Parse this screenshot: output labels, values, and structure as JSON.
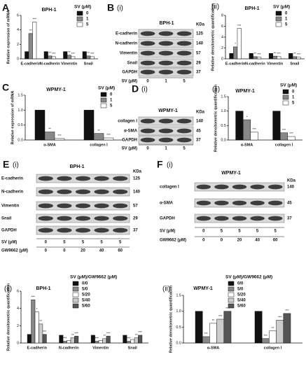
{
  "chart_data": [
    {
      "type": "bar",
      "panel": "A",
      "title": "BPH-1",
      "ylabel": "Relative expression of mRNA",
      "legend_title": "SV (μM)",
      "categories": [
        "E-cadherin",
        "N-cadherin",
        "Vimentin",
        "Snail"
      ],
      "ylim": [
        0,
        6
      ],
      "yticks": [
        0,
        2,
        4,
        6
      ],
      "series": [
        {
          "name": "0",
          "color": "#111111",
          "values": [
            1,
            1,
            1,
            1
          ],
          "marks": [
            null,
            null,
            null,
            null
          ]
        },
        {
          "name": "1",
          "color": "#888888",
          "values": [
            3.5,
            0.4,
            0.5,
            0.4
          ],
          "marks": [
            "**",
            "**",
            "**",
            "**"
          ]
        },
        {
          "name": "5",
          "color": "#ffffff",
          "values": [
            5.1,
            0.3,
            0.3,
            0.3
          ],
          "marks": [
            "***",
            "***",
            "***",
            "***"
          ]
        }
      ]
    },
    {
      "type": "bar",
      "panel": "(ii)",
      "title": "BPH-1",
      "ylabel": "Relative densitometric quantification",
      "legend_title": "SV (μM)",
      "categories": [
        "E-cadherin",
        "N-cadherin",
        "Vimentin",
        "Snail"
      ],
      "ylim": [
        0,
        8
      ],
      "yticks": [
        0,
        2,
        4,
        6,
        8
      ],
      "series": [
        {
          "name": "0",
          "color": "#111111",
          "values": [
            1,
            1,
            1,
            1
          ],
          "marks": [
            null,
            null,
            null,
            null
          ]
        },
        {
          "name": "1",
          "color": "#888888",
          "values": [
            2.2,
            0.4,
            0.5,
            0.4
          ],
          "marks": [
            "*",
            "**",
            "**",
            "**"
          ]
        },
        {
          "name": "5",
          "color": "#ffffff",
          "values": [
            5.6,
            0.3,
            0.4,
            0.3
          ],
          "marks": [
            "***",
            "***",
            "***",
            "***"
          ]
        }
      ]
    },
    {
      "type": "bar",
      "panel": "C",
      "title": "WPMY-1",
      "ylabel": "Relative expression of mRNA",
      "legend_title": "SV (μM)",
      "categories": [
        "α-SMA",
        "collagen Ⅰ"
      ],
      "ylim": [
        0,
        1.5
      ],
      "yticks": [
        {
          "value": 0,
          "label": "0.0"
        },
        0.5,
        {
          "value": 1,
          "label": "1.0"
        },
        1.5
      ],
      "series": [
        {
          "name": "0",
          "color": "#111111",
          "values": [
            1.0,
            1.0
          ],
          "marks": [
            null,
            null
          ]
        },
        {
          "name": "1",
          "color": "#888888",
          "values": [
            0.27,
            0.22
          ],
          "marks": [
            "**",
            "**"
          ]
        },
        {
          "name": "5",
          "color": "#ffffff",
          "values": [
            0.05,
            0.07
          ],
          "marks": [
            "***",
            "***"
          ]
        }
      ]
    },
    {
      "type": "bar",
      "panel": "(ii)",
      "title": "WPMY-1",
      "ylabel": "Relative densitometric quantification",
      "legend_title": "SV (μM)",
      "categories": [
        "α-SMA",
        "collagen Ⅰ"
      ],
      "ylim": [
        0,
        1.5
      ],
      "yticks": [
        {
          "value": 0,
          "label": "0.0"
        },
        0.5,
        {
          "value": 1,
          "label": "1.0"
        },
        1.5
      ],
      "series": [
        {
          "name": "0",
          "color": "#111111",
          "values": [
            1.0,
            1.0
          ],
          "marks": [
            null,
            null
          ]
        },
        {
          "name": "1",
          "color": "#888888",
          "values": [
            0.7,
            0.25
          ],
          "marks": [
            "*",
            "***"
          ]
        },
        {
          "name": "5",
          "color": "#ffffff",
          "values": [
            0.27,
            0.12
          ],
          "marks": [
            "***",
            "***"
          ]
        }
      ]
    },
    {
      "type": "bar",
      "panel": "(ii)",
      "title": "BPH-1",
      "ylabel": "Relative densitometric quantification",
      "legend_title": "SV (μM)/GW9662 (μM)",
      "categories": [
        "E-cadherin",
        "N-cadherin",
        "Vimentin",
        "Snail"
      ],
      "ylim": [
        0,
        6
      ],
      "yticks": [
        0,
        2,
        4,
        6
      ],
      "series": [
        {
          "name": "0/0",
          "color": "#111111",
          "values": [
            1.0,
            0.9,
            0.9,
            0.9
          ],
          "marks": [
            null,
            null,
            null,
            null
          ]
        },
        {
          "name": "5/0",
          "color": "#888888",
          "values": [
            5.0,
            0.2,
            0.2,
            0.2
          ],
          "marks": [
            "***",
            "***",
            "***",
            "***"
          ]
        },
        {
          "name": "5/20",
          "color": "#ffffff",
          "values": [
            3.6,
            0.3,
            0.3,
            0.4
          ],
          "marks": [
            "*",
            null,
            null,
            null
          ]
        },
        {
          "name": "5/40",
          "color": "#cccccc",
          "values": [
            2.2,
            0.6,
            0.5,
            0.6
          ],
          "marks": [
            "**",
            "**",
            "**",
            "**"
          ]
        },
        {
          "name": "5/60",
          "color": "#555555",
          "values": [
            1.0,
            0.8,
            0.8,
            0.9
          ],
          "marks": [
            "***",
            "***",
            "***",
            "***"
          ]
        }
      ]
    },
    {
      "type": "bar",
      "panel": "(ii)",
      "title": "WPMY-1",
      "ylabel": "Relative densitometric quantification",
      "legend_title": "SV (μM)/GW9662 (μM)",
      "categories": [
        "α-SMA",
        "collagen Ⅰ"
      ],
      "ylim": [
        0,
        1.5
      ],
      "yticks": [
        {
          "value": 0,
          "label": "0.0"
        },
        0.5,
        {
          "value": 1,
          "label": "1.0"
        },
        1.5
      ],
      "series": [
        {
          "name": "0/0",
          "color": "#111111",
          "values": [
            1.0,
            1.0
          ],
          "marks": [
            null,
            null
          ]
        },
        {
          "name": "5/0",
          "color": "#888888",
          "values": [
            0.2,
            0.14
          ],
          "marks": [
            "***",
            "***"
          ]
        },
        {
          "name": "5/20",
          "color": "#ffffff",
          "values": [
            0.62,
            0.38
          ],
          "marks": [
            "**",
            "**"
          ]
        },
        {
          "name": "5/40",
          "color": "#cccccc",
          "values": [
            0.75,
            0.72
          ],
          "marks": [
            "***",
            "***"
          ]
        },
        {
          "name": "5/60",
          "color": "#555555",
          "values": [
            1.0,
            0.93
          ],
          "marks": [
            "***",
            "***"
          ]
        }
      ]
    }
  ],
  "blots": [
    {
      "panel": "B",
      "subpanel": "(i)",
      "title": "BPH-1",
      "unit": "KDa",
      "rows": [
        {
          "label": "E-cadherin",
          "kda": 125
        },
        {
          "label": "N-cadherin",
          "kda": 140
        },
        {
          "label": "Vimentin",
          "kda": 57
        },
        {
          "label": "Snail",
          "kda": 29
        },
        {
          "label": "GAPDH",
          "kda": 37
        }
      ],
      "conditions": [
        {
          "label": "SV (μM)",
          "values": [
            0,
            1,
            5
          ]
        }
      ]
    },
    {
      "panel": "D",
      "subpanel": "(i)",
      "title": "WPMY-1",
      "unit": "KDa",
      "rows": [
        {
          "label": "collagen Ⅰ",
          "kda": 140
        },
        {
          "label": "α-SMA",
          "kda": 45
        },
        {
          "label": "GAPDH",
          "kda": 37
        }
      ],
      "conditions": [
        {
          "label": "SV (μM)",
          "values": [
            0,
            1,
            5
          ]
        }
      ]
    },
    {
      "panel": "E",
      "subpanel": "(i)",
      "title": "BPH-1",
      "unit": "KDa",
      "rows": [
        {
          "label": "E-cadherin",
          "kda": 125
        },
        {
          "label": "N-cadherin",
          "kda": 140
        },
        {
          "label": "Vimentin",
          "kda": 57
        },
        {
          "label": "Snail",
          "kda": 29
        },
        {
          "label": "GAPDH",
          "kda": 37
        }
      ],
      "conditions": [
        {
          "label": "SV (μM)",
          "values": [
            0,
            5,
            5,
            5,
            5
          ]
        },
        {
          "label": "GW9662 (μM)",
          "values": [
            0,
            0,
            20,
            40,
            60
          ]
        }
      ]
    },
    {
      "panel": "F",
      "subpanel": "(i)",
      "title": "WPMY-1",
      "unit": "KDa",
      "rows": [
        {
          "label": "collagen Ⅰ",
          "kda": 140
        },
        {
          "label": "α-SMA",
          "kda": 45
        },
        {
          "label": "GAPDH",
          "kda": 37
        }
      ],
      "conditions": [
        {
          "label": "SV (μM)",
          "values": [
            0,
            5,
            5,
            5,
            5
          ]
        },
        {
          "label": "GW9662 (μM)",
          "values": [
            0,
            0,
            20,
            40,
            60
          ]
        }
      ]
    }
  ]
}
